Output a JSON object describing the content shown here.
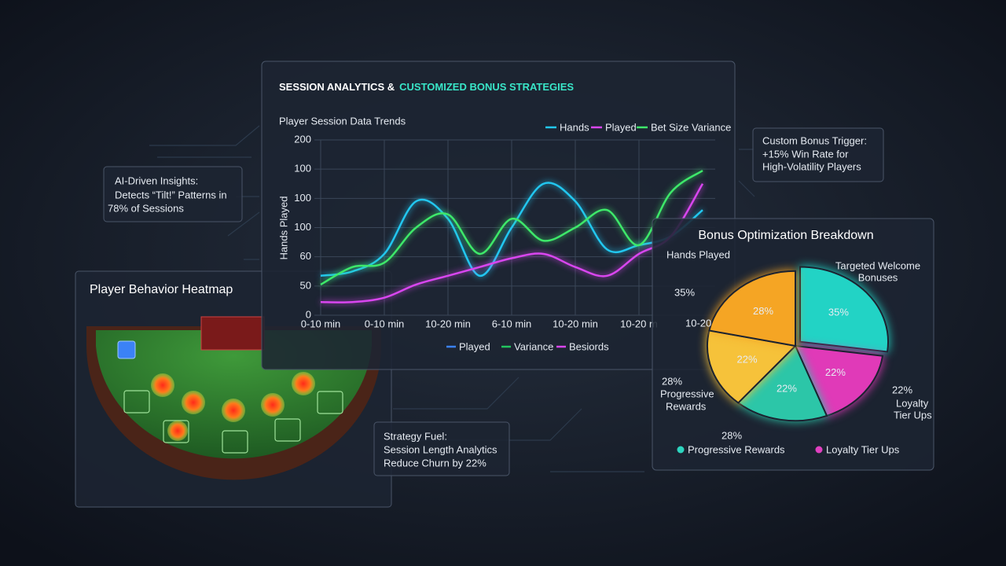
{
  "header": {
    "title_part1": "SESSION ANALYTICS &",
    "title_part2": "CUSTOMIZED BONUS STRATEGIES"
  },
  "chart_data": [
    {
      "type": "line",
      "title": "Player Session Data Trends",
      "y_label": "Hands Played",
      "categories": [
        "0-10 min",
        null,
        "0-10 min",
        null,
        "10-20 min",
        null,
        "6-10 min",
        null,
        "10-20 min",
        null,
        "10-20 m",
        null,
        null
      ],
      "series": [
        {
          "name": "Hands",
          "color": "#22c7f0",
          "values": [
            45,
            50,
            70,
            130,
            110,
            45,
            100,
            150,
            130,
            75,
            80,
            90,
            120
          ]
        },
        {
          "name": "Played",
          "color": "#d946ef",
          "values": [
            15,
            15,
            20,
            35,
            45,
            55,
            65,
            70,
            55,
            45,
            70,
            90,
            150
          ]
        },
        {
          "name": "Bet Size Variance",
          "color": "#3ee86a",
          "values": [
            35,
            55,
            60,
            100,
            115,
            70,
            110,
            85,
            100,
            120,
            80,
            140,
            165
          ]
        }
      ],
      "ylim": [
        0,
        200
      ],
      "yticks": [
        0,
        {
          "value": 33.33,
          "label": "50"
        },
        {
          "value": 66.67,
          "label": "60"
        },
        100,
        {
          "value": 133.33,
          "label": "100"
        },
        {
          "value": 166.67,
          "label": "100"
        },
        200
      ],
      "grid": true,
      "legend2": [
        {
          "name": "Played",
          "color": "#3b82f6"
        },
        {
          "name": "Variance",
          "color": "#22c55e"
        },
        {
          "name": "Besiords",
          "color": "#d946ef"
        }
      ]
    },
    {
      "type": "pie",
      "title": "Bonus Optimization Breakdown",
      "values": [
        35,
        22,
        22,
        22,
        28
      ],
      "value_labels": [
        "35%",
        "22%",
        "22%",
        "22%",
        "28%"
      ],
      "colors": [
        "#22d3c5",
        "#e03ab8",
        "#2cc6a8",
        "#f6c23a",
        "#f5a524"
      ],
      "annotations": [
        "Hands Played",
        "35%",
        "10-20",
        "Targeted Welcome",
        "Bonuses",
        "28%",
        "Progressive",
        "Rewards",
        "22%",
        "Loyalty",
        "Tier Ups",
        "28%"
      ],
      "legend": [
        {
          "name": "Progressive Rewards",
          "color": "#2dd4bf"
        },
        {
          "name": "Loyalty Tier Ups",
          "color": "#e040c0"
        }
      ]
    }
  ],
  "insights": {
    "title": "AI-Driven Insights:",
    "lines": [
      "Detects “Tilt!” Patterns in",
      "78% of Sessions"
    ]
  },
  "trigger": {
    "title": "Custom Bonus Trigger:",
    "lines": [
      "+15% Win Rate for",
      "High-Volatility Players"
    ]
  },
  "strategy": {
    "title": "Strategy Fuel:",
    "lines": [
      "Session Length Analytics",
      "Reduce Churn by 22%"
    ]
  },
  "heatmap": {
    "title": "Player Behavior Heatmap"
  }
}
